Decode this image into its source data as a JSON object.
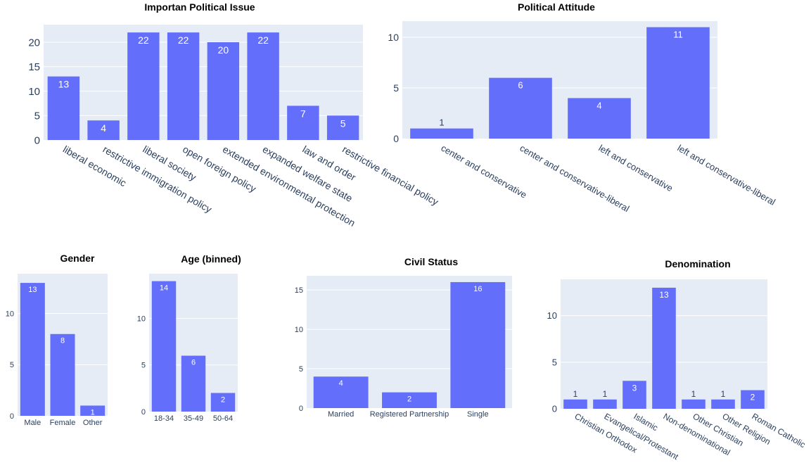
{
  "colors": {
    "bar": "#636efa",
    "plot_bg": "#e5ecf6",
    "tick_text": "#2a3f5f",
    "title_text": "#000000"
  },
  "chart_data": [
    {
      "type": "bar",
      "title": "Importan Political Issue",
      "categories": [
        "liberal economic",
        "restrictive immigration policy",
        "liberal society",
        "open foreign policy",
        "extended environmental protection",
        "expanded welfare state",
        "law and order",
        "restrictive financial policy"
      ],
      "values": [
        13,
        4,
        22,
        22,
        20,
        22,
        7,
        5
      ],
      "yticks": [
        0,
        5,
        10,
        15,
        20
      ],
      "ylim": [
        0,
        23.6
      ],
      "grid": true,
      "xlabel": "",
      "ylabel": ""
    },
    {
      "type": "bar",
      "title": "Political Attitude",
      "categories": [
        "center and conservative",
        "center and conservative-liberal",
        "left and conservative",
        "left and conservative-liberal"
      ],
      "values": [
        1,
        6,
        4,
        11
      ],
      "yticks": [
        0,
        5,
        10
      ],
      "ylim": [
        0,
        11.6
      ],
      "grid": true,
      "xlabel": "",
      "ylabel": ""
    },
    {
      "type": "bar",
      "title": "Gender",
      "categories": [
        "Male",
        "Female",
        "Other"
      ],
      "values": [
        13,
        8,
        1
      ],
      "yticks": [
        0,
        5,
        10
      ],
      "ylim": [
        0,
        13.9
      ],
      "grid": true,
      "xlabel": "",
      "ylabel": ""
    },
    {
      "type": "bar",
      "title": "Age (binned)",
      "categories": [
        "18-34",
        "35-49",
        "50-64"
      ],
      "values": [
        14,
        6,
        2
      ],
      "yticks": [
        0,
        5,
        10
      ],
      "ylim": [
        0,
        14.8
      ],
      "grid": true,
      "xlabel": "",
      "ylabel": ""
    },
    {
      "type": "bar",
      "title": "Civil Status",
      "categories": [
        "Married",
        "Registered Partnership",
        "Single"
      ],
      "values": [
        4,
        2,
        16
      ],
      "yticks": [
        0,
        5,
        10,
        15
      ],
      "ylim": [
        0,
        16.8
      ],
      "grid": true,
      "xlabel": "",
      "ylabel": ""
    },
    {
      "type": "bar",
      "title": "Denomination",
      "categories": [
        "Christian Orthodox",
        "Evangelical/Protestant",
        "Islamic",
        "Non-denominational",
        "Other Christian",
        "Other Religion",
        "Roman Catholic"
      ],
      "values": [
        1,
        1,
        3,
        13,
        1,
        1,
        2
      ],
      "yticks": [
        0,
        5,
        10
      ],
      "ylim": [
        0,
        13.9
      ],
      "grid": true,
      "xlabel": "",
      "ylabel": ""
    }
  ]
}
